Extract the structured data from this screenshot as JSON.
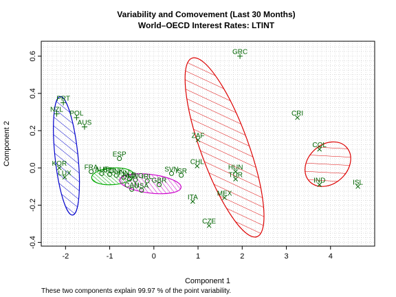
{
  "chart_data": {
    "type": "scatter",
    "title": "Variability and Comovement (Last 30 Months)",
    "subtitle": "World–OECD Interest Rates: LTINT",
    "xlabel": "Component 1",
    "ylabel": "Component 2",
    "xlim": [
      -2.55,
      5.0
    ],
    "ylim": [
      -0.42,
      0.68
    ],
    "x_ticks": [
      -2,
      -1,
      0,
      1,
      2,
      3,
      4
    ],
    "y_ticks": [
      -0.4,
      -0.2,
      0.0,
      0.2,
      0.4,
      0.6
    ],
    "grid": true,
    "footnote": "These two components explain 99.97 % of the point variability.",
    "colors": {
      "blue": "#0000cc",
      "green": "#00aa00",
      "magenta": "#cc00cc",
      "red": "#dd0000",
      "label": "#006400"
    },
    "clusters": [
      {
        "color": "blue",
        "ellipse": {
          "cx": -1.98,
          "cy": 0.065,
          "rx": 0.26,
          "ry": 0.32,
          "angle": 6
        },
        "points": [
          {
            "label": "PRT",
            "x": -2.05,
            "y": 0.35,
            "marker": "+"
          },
          {
            "label": "NZL",
            "x": -2.2,
            "y": 0.29,
            "marker": "+"
          },
          {
            "label": "POL",
            "x": -1.75,
            "y": 0.27,
            "marker": "+"
          },
          {
            "label": "AUS",
            "x": -1.57,
            "y": 0.22,
            "marker": "+"
          },
          {
            "label": "KOR",
            "x": -2.14,
            "y": 0.0,
            "marker": "x"
          },
          {
            "label": "LUX",
            "x": -2.02,
            "y": -0.05,
            "marker": "x"
          }
        ]
      },
      {
        "color": "green",
        "ellipse": {
          "cx": -0.93,
          "cy": -0.045,
          "rx": 0.48,
          "ry": 0.045,
          "angle": 4
        },
        "points": [
          {
            "label": "ESP",
            "x": -0.78,
            "y": 0.05,
            "marker": "o"
          },
          {
            "label": "FRA",
            "x": -1.42,
            "y": -0.02,
            "marker": "o"
          },
          {
            "label": "AUT",
            "x": -1.18,
            "y": -0.03,
            "marker": "o"
          },
          {
            "label": "BEL",
            "x": -1.0,
            "y": -0.035,
            "marker": "o"
          },
          {
            "label": "DNK",
            "x": -0.85,
            "y": -0.04,
            "marker": "o"
          },
          {
            "label": "FIN",
            "x": -0.68,
            "y": -0.05,
            "marker": "o"
          },
          {
            "label": "NLD",
            "x": -0.55,
            "y": -0.06,
            "marker": "o"
          }
        ]
      },
      {
        "color": "magenta",
        "ellipse": {
          "cx": -0.08,
          "cy": -0.085,
          "rx": 0.7,
          "ry": 0.05,
          "angle": -7
        },
        "points": [
          {
            "label": "MNG",
            "x": -0.42,
            "y": -0.065,
            "marker": "o"
          },
          {
            "label": "IRL",
            "x": -0.15,
            "y": -0.07,
            "marker": "o"
          },
          {
            "label": "SVN",
            "x": 0.4,
            "y": -0.03,
            "marker": "o"
          },
          {
            "label": "ISR",
            "x": 0.62,
            "y": -0.04,
            "marker": "o"
          },
          {
            "label": "GBR",
            "x": 0.12,
            "y": -0.09,
            "marker": "o"
          },
          {
            "label": "CAN",
            "x": -0.5,
            "y": -0.115,
            "marker": "o"
          },
          {
            "label": "USA",
            "x": -0.28,
            "y": -0.12,
            "marker": "o"
          }
        ]
      },
      {
        "color": "red",
        "ellipse": {
          "cx": 1.6,
          "cy": 0.11,
          "rx": 0.54,
          "ry": 0.51,
          "angle": 20
        },
        "points": [
          {
            "label": "GRC",
            "x": 1.95,
            "y": 0.6,
            "marker": "+"
          },
          {
            "label": "ZAF",
            "x": 1.0,
            "y": 0.15,
            "marker": "x"
          },
          {
            "label": "CHL",
            "x": 0.98,
            "y": 0.01,
            "marker": "x"
          },
          {
            "label": "HUN",
            "x": 1.85,
            "y": -0.02,
            "marker": "x"
          },
          {
            "label": "TUR",
            "x": 1.85,
            "y": -0.06,
            "marker": "x"
          },
          {
            "label": "MEX",
            "x": 1.6,
            "y": -0.16,
            "marker": "x"
          },
          {
            "label": "ITA",
            "x": 0.88,
            "y": -0.18,
            "marker": "x"
          },
          {
            "label": "CZE",
            "x": 1.25,
            "y": -0.31,
            "marker": "x"
          }
        ]
      },
      {
        "color": "red",
        "ellipse": {
          "cx": 3.94,
          "cy": 0.02,
          "rx": 0.57,
          "ry": 0.105,
          "angle": 42
        },
        "points": [
          {
            "label": "CRI",
            "x": 3.25,
            "y": 0.27,
            "marker": "x"
          },
          {
            "label": "COL",
            "x": 3.75,
            "y": 0.1,
            "marker": "x"
          },
          {
            "label": "IND",
            "x": 3.75,
            "y": -0.09,
            "marker": "x"
          },
          {
            "label": "ISL",
            "x": 4.62,
            "y": -0.1,
            "marker": "x"
          }
        ]
      }
    ]
  }
}
